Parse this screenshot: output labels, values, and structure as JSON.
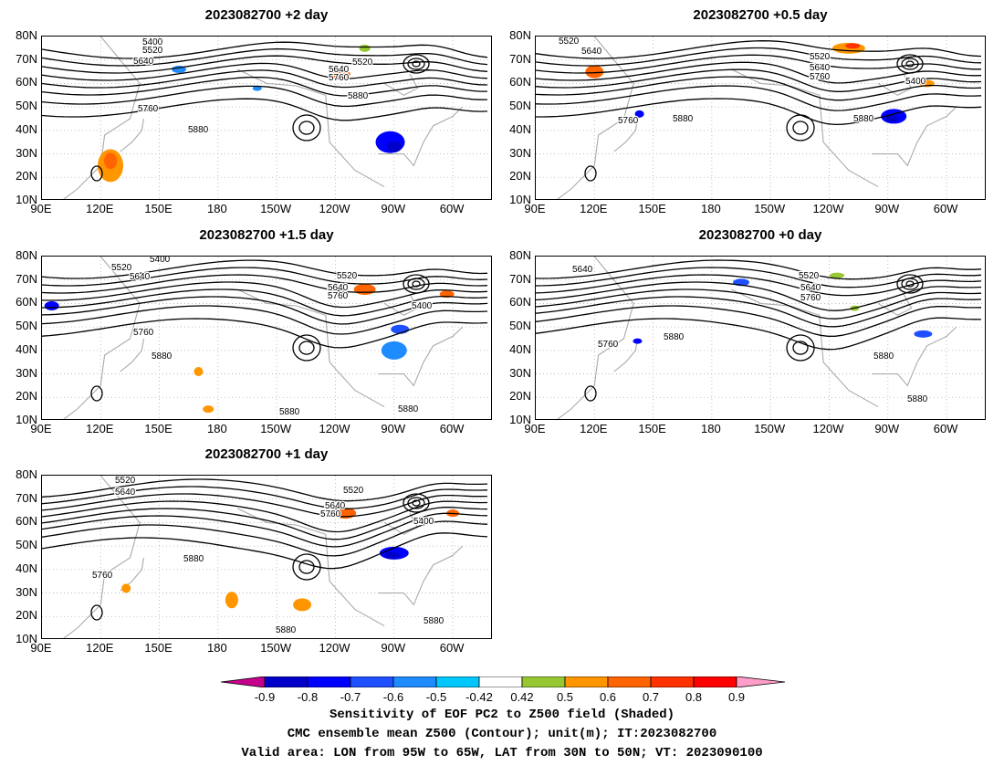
{
  "panels": [
    {
      "id": "p2",
      "title": "2023082700 +2 day",
      "pos": "top-left"
    },
    {
      "id": "p05",
      "title": "2023082700 +0.5 day",
      "pos": "top-right"
    },
    {
      "id": "p15",
      "title": "2023082700 +1.5 day",
      "pos": "middle-left"
    },
    {
      "id": "p0",
      "title": "2023082700 +0 day",
      "pos": "middle-right"
    },
    {
      "id": "p1",
      "title": "2023082700 +1 day",
      "pos": "bottom-left"
    }
  ],
  "axes": {
    "lat_ticks": [
      "80N",
      "70N",
      "60N",
      "50N",
      "40N",
      "30N",
      "20N",
      "10N"
    ],
    "lon_ticks": [
      "90E",
      "120E",
      "150E",
      "180",
      "150W",
      "120W",
      "90W",
      "60W"
    ]
  },
  "contour_labels": [
    "5400",
    "5520",
    "5640",
    "5760",
    "5880"
  ],
  "colorbar": {
    "ticks": [
      "-0.9",
      "-0.8",
      "-0.7",
      "-0.6",
      "-0.5",
      "-0.42",
      "0.42",
      "0.5",
      "0.6",
      "0.7",
      "0.8",
      "0.9"
    ],
    "colors": [
      "#c4008c",
      "#0000c8",
      "#0000ff",
      "#1e50ff",
      "#1e8cff",
      "#00c8ff",
      "#ffffff",
      "#96c832",
      "#ff9600",
      "#ff6400",
      "#ff3200",
      "#ff0000",
      "#ff9ec8"
    ]
  },
  "caption": {
    "line1": "Sensitivity of EOF PC2 to Z500 field (Shaded)",
    "line2": "CMC ensemble mean Z500 (Contour); unit(m); IT:2023082700",
    "line3": "Valid area: LON from 95W to 65W, LAT from 30N to 50N; VT: 2023090100"
  }
}
